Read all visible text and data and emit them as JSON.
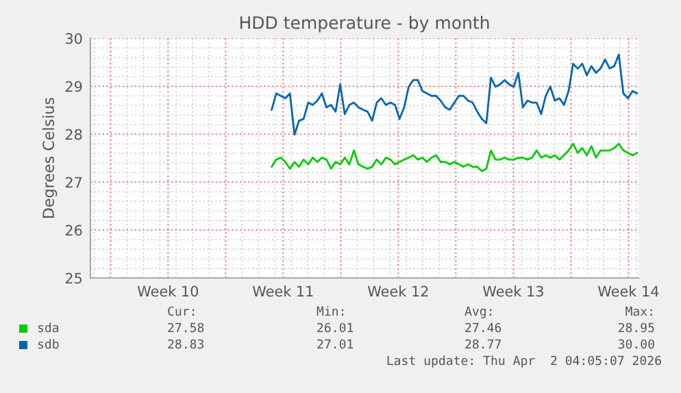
{
  "chart_data": {
    "type": "line",
    "title": "HDD temperature - by month",
    "ylabel": "Degrees Celsius",
    "x": [
      "2026-03-11T19:12",
      "2026-03-12T01:52",
      "2026-03-12T08:32",
      "2026-03-12T15:12",
      "2026-03-12T21:52",
      "2026-03-13T04:32",
      "2026-03-13T11:12",
      "2026-03-13T17:52",
      "2026-03-14T00:32",
      "2026-03-14T07:12",
      "2026-03-14T13:52",
      "2026-03-14T20:32",
      "2026-03-15T03:12",
      "2026-03-15T09:52",
      "2026-03-15T16:32",
      "2026-03-15T23:12",
      "2026-03-16T05:52",
      "2026-03-16T12:32",
      "2026-03-16T19:12",
      "2026-03-17T01:52",
      "2026-03-17T08:32",
      "2026-03-17T15:12",
      "2026-03-17T21:52",
      "2026-03-18T04:32",
      "2026-03-18T11:12",
      "2026-03-18T17:52",
      "2026-03-19T00:32",
      "2026-03-19T07:12",
      "2026-03-19T13:52",
      "2026-03-19T20:32",
      "2026-03-20T03:12",
      "2026-03-20T09:52",
      "2026-03-20T16:32",
      "2026-03-20T23:12",
      "2026-03-21T05:52",
      "2026-03-21T12:32",
      "2026-03-21T19:12",
      "2026-03-22T01:52",
      "2026-03-22T08:32",
      "2026-03-22T15:12",
      "2026-03-22T21:52",
      "2026-03-23T04:32",
      "2026-03-23T11:12",
      "2026-03-23T17:52",
      "2026-03-24T00:32",
      "2026-03-24T07:12",
      "2026-03-24T13:52",
      "2026-03-24T20:32",
      "2026-03-25T03:12",
      "2026-03-25T09:52",
      "2026-03-25T16:32",
      "2026-03-25T23:12",
      "2026-03-26T05:52",
      "2026-03-26T12:32",
      "2026-03-26T19:12",
      "2026-03-27T01:52",
      "2026-03-27T08:32",
      "2026-03-27T15:12",
      "2026-03-27T21:52",
      "2026-03-28T04:32",
      "2026-03-28T11:12",
      "2026-03-28T17:52",
      "2026-03-29T00:32",
      "2026-03-29T07:12",
      "2026-03-29T13:52",
      "2026-03-29T20:32",
      "2026-03-30T03:12",
      "2026-03-30T09:52",
      "2026-03-30T16:32",
      "2026-03-30T23:12",
      "2026-03-31T05:52",
      "2026-03-31T12:32",
      "2026-03-31T19:12",
      "2026-04-01T01:52",
      "2026-04-01T08:32",
      "2026-04-01T15:12",
      "2026-04-01T21:52",
      "2026-04-02T04:32",
      "2026-04-02T11:12",
      "2026-04-02T17:52",
      "2026-04-03T00:32"
    ],
    "series": [
      {
        "name": "sda",
        "color": "#00cc00",
        "values": [
          27.32,
          27.47,
          27.51,
          27.42,
          27.28,
          27.42,
          27.32,
          27.47,
          27.37,
          27.51,
          27.42,
          27.51,
          27.47,
          27.28,
          27.42,
          27.37,
          27.51,
          27.37,
          27.66,
          27.37,
          27.32,
          27.28,
          27.32,
          27.47,
          27.37,
          27.51,
          27.47,
          27.37,
          27.42,
          27.47,
          27.51,
          27.56,
          27.47,
          27.51,
          27.42,
          27.51,
          27.56,
          27.42,
          27.42,
          27.37,
          27.42,
          27.37,
          27.32,
          27.37,
          27.32,
          27.32,
          27.23,
          27.28,
          27.66,
          27.47,
          27.47,
          27.51,
          27.47,
          27.47,
          27.51,
          27.51,
          27.47,
          27.51,
          27.66,
          27.51,
          27.56,
          27.51,
          27.56,
          27.47,
          27.56,
          27.66,
          27.8,
          27.61,
          27.71,
          27.56,
          27.75,
          27.51,
          27.66,
          27.66,
          27.66,
          27.71,
          27.8,
          27.66,
          27.61,
          27.56,
          27.61
        ]
      },
      {
        "name": "sdb",
        "color": "#0066b3",
        "values": [
          28.51,
          28.85,
          28.8,
          28.75,
          28.85,
          27.99,
          28.28,
          28.32,
          28.66,
          28.61,
          28.7,
          28.85,
          28.56,
          28.61,
          28.47,
          29.04,
          28.42,
          28.61,
          28.66,
          28.56,
          28.51,
          28.47,
          28.28,
          28.66,
          28.75,
          28.61,
          28.66,
          28.61,
          28.32,
          28.56,
          28.99,
          29.13,
          29.13,
          28.9,
          28.85,
          28.8,
          28.8,
          28.7,
          28.56,
          28.51,
          28.66,
          28.8,
          28.8,
          28.7,
          28.66,
          28.47,
          28.32,
          28.23,
          29.18,
          28.99,
          29.04,
          29.13,
          29.04,
          28.99,
          29.28,
          28.56,
          28.7,
          28.66,
          28.66,
          28.42,
          28.8,
          28.99,
          28.7,
          28.75,
          28.61,
          28.9,
          29.47,
          29.37,
          29.47,
          29.23,
          29.42,
          29.28,
          29.37,
          29.56,
          29.37,
          29.42,
          29.66,
          28.85,
          28.75,
          28.9,
          28.85
        ]
      }
    ],
    "xlim": [
      "2026-02-28T18:43",
      "2026-04-03T02:38"
    ],
    "xticks": [
      {
        "value": "2026-03-02",
        "label": null
      },
      {
        "value": "2026-03-05T12:00",
        "label": "Week 10"
      },
      {
        "value": "2026-03-09",
        "label": null
      },
      {
        "value": "2026-03-12T12:00",
        "label": "Week 11"
      },
      {
        "value": "2026-03-16",
        "label": null
      },
      {
        "value": "2026-03-19T12:00",
        "label": "Week 12"
      },
      {
        "value": "2026-03-23",
        "label": null
      },
      {
        "value": "2026-03-26T12:00",
        "label": "Week 13"
      },
      {
        "value": "2026-03-30",
        "label": null
      },
      {
        "value": "2026-04-02T12:00",
        "label": "Week 14"
      }
    ],
    "ylim": [
      25,
      30
    ],
    "yticks": [
      25,
      26,
      27,
      28,
      29,
      30
    ],
    "grid": true,
    "legend": "bottom",
    "marker": "none",
    "line_style": "solid",
    "annotations": [
      "Cur:",
      "Min:",
      "Avg:",
      "Max:",
      "27.58",
      "26.01",
      "27.46",
      "28.95",
      "28.83",
      "27.01",
      "28.77",
      "30.00",
      "Last update: Thu Apr  2 04:05:07 2026"
    ]
  }
}
